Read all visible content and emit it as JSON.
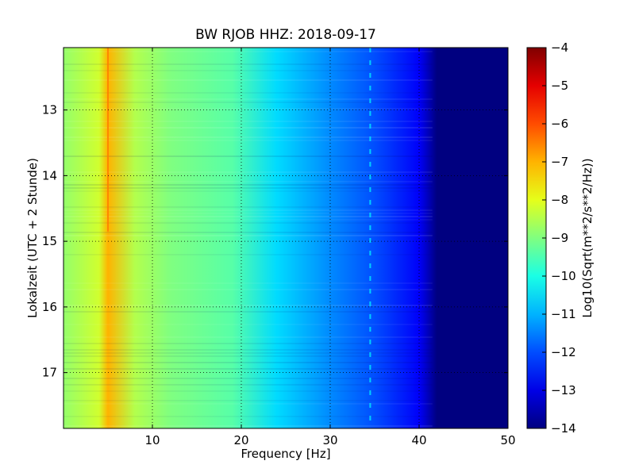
{
  "chart_data": {
    "type": "heatmap",
    "title": "BW RJOB HHZ: 2018-09-17",
    "xlabel": "Frequency [Hz]",
    "ylabel": "Lokalzeit (UTC + 2 Stunde)",
    "xlim": [
      0,
      50
    ],
    "ylim": [
      12.05,
      17.85
    ],
    "y_inverted": true,
    "x_ticks": [
      10,
      20,
      30,
      40,
      50
    ],
    "y_ticks": [
      13,
      14,
      15,
      16,
      17
    ],
    "grid": true,
    "colorbar": {
      "label": "Log10(Sqrt(m**2/s**2/Hz))",
      "range": [
        -14,
        -4
      ],
      "ticks": [
        -4,
        -5,
        -6,
        -7,
        -8,
        -9,
        -10,
        -11,
        -12,
        -13,
        -14
      ],
      "colormap": "jet"
    },
    "spectral_profile": [
      {
        "freq_hz": 0,
        "value": -8.8
      },
      {
        "freq_hz": 4,
        "value": -8.2
      },
      {
        "freq_hz": 5,
        "value": -7.0
      },
      {
        "freq_hz": 8,
        "value": -8.5
      },
      {
        "freq_hz": 12,
        "value": -9.0
      },
      {
        "freq_hz": 19,
        "value": -9.4
      },
      {
        "freq_hz": 24,
        "value": -10.6
      },
      {
        "freq_hz": 30,
        "value": -11.4
      },
      {
        "freq_hz": 35,
        "value": -12.0
      },
      {
        "freq_hz": 40,
        "value": -12.8
      },
      {
        "freq_hz": 42,
        "value": -14.0
      },
      {
        "freq_hz": 50,
        "value": -14.0
      }
    ],
    "features": [
      {
        "freq_hz": 5,
        "time_start": 12.05,
        "time_end": 14.85,
        "value": -6.5
      },
      {
        "freq_hz": 34.5,
        "time_start": 12.05,
        "time_end": 17.85,
        "value": -10.5
      }
    ]
  }
}
